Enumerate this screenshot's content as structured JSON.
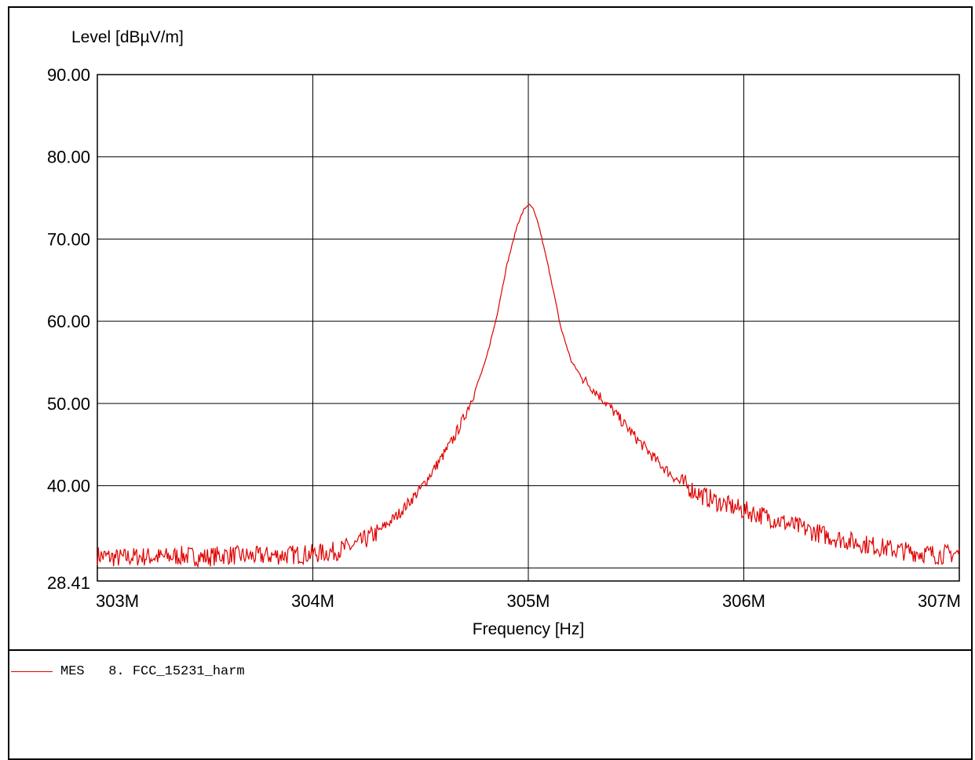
{
  "chart_data": {
    "type": "line",
    "title": "",
    "ylabel": "Level [dBµV/m]",
    "xlabel": "Frequency [Hz]",
    "xlim": [
      303000000,
      307000000
    ],
    "ylim": [
      28.41,
      90.0
    ],
    "x_ticks": [
      {
        "value": 303000000,
        "label": "303M"
      },
      {
        "value": 304000000,
        "label": "304M"
      },
      {
        "value": 305000000,
        "label": "305M"
      },
      {
        "value": 306000000,
        "label": "306M"
      },
      {
        "value": 307000000,
        "label": "307M"
      }
    ],
    "y_ticks": [
      {
        "value": 90,
        "label": "90.00"
      },
      {
        "value": 80,
        "label": "80.00"
      },
      {
        "value": 70,
        "label": "70.00"
      },
      {
        "value": 60,
        "label": "60.00"
      },
      {
        "value": 50,
        "label": "50.00"
      },
      {
        "value": 40,
        "label": "40.00"
      },
      {
        "value": 28.41,
        "label": "28.41"
      }
    ],
    "grid": true,
    "reference_line_level": 30.0,
    "series": [
      {
        "name": "MES   8. FCC_15231_harm",
        "color": "#e00000",
        "x": [
          303000000,
          303100000,
          303200000,
          303300000,
          303400000,
          303500000,
          303600000,
          303700000,
          303800000,
          303900000,
          304000000,
          304100000,
          304200000,
          304300000,
          304400000,
          304500000,
          304600000,
          304650000,
          304700000,
          304750000,
          304800000,
          304850000,
          304900000,
          304950000,
          304980000,
          305000000,
          305020000,
          305050000,
          305100000,
          305150000,
          305200000,
          305250000,
          305300000,
          305350000,
          305400000,
          305500000,
          305600000,
          305700000,
          305800000,
          305900000,
          306000000,
          306100000,
          306200000,
          306300000,
          306400000,
          306500000,
          306600000,
          306700000,
          306800000,
          306900000,
          307000000
        ],
        "y": [
          31.5,
          31.2,
          31.4,
          31.3,
          31.5,
          31.3,
          31.6,
          31.4,
          31.5,
          31.6,
          31.7,
          32.0,
          32.8,
          34.3,
          36.6,
          39.6,
          43.5,
          45.6,
          48.2,
          51.4,
          55.0,
          60.2,
          66.8,
          71.8,
          73.6,
          74.2,
          73.8,
          71.5,
          65.8,
          59.3,
          55.1,
          53.1,
          51.8,
          50.4,
          48.9,
          45.8,
          42.9,
          40.5,
          38.9,
          37.8,
          37.0,
          36.3,
          35.4,
          34.6,
          33.8,
          33.2,
          32.7,
          32.2,
          31.9,
          31.6,
          31.8
        ]
      }
    ],
    "legend": {
      "placement": "below-plot-left"
    }
  }
}
